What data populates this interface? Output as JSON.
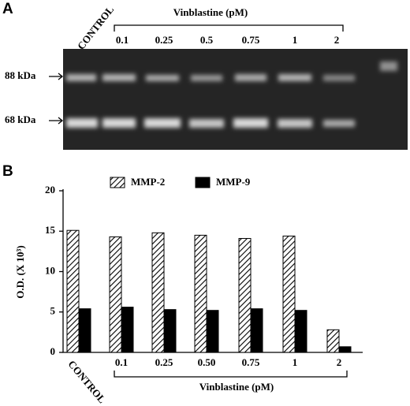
{
  "panel_a": {
    "label": "A",
    "treatment": "Vinblastine (pM)",
    "control": "CONTROL",
    "lanes": [
      "0.1",
      "0.25",
      "0.5",
      "0.75",
      "1",
      "2"
    ],
    "markers": [
      "88 kDa",
      "68 kDa"
    ]
  },
  "chart_data": {
    "type": "bar",
    "panel_label": "B",
    "categories": [
      "CONTROL",
      "0.1",
      "0.25",
      "0.50",
      "0.75",
      "1",
      "2"
    ],
    "series": [
      {
        "name": "MMP-2",
        "color": "#000000",
        "pattern": "hatch",
        "values": [
          15.1,
          14.3,
          14.8,
          14.5,
          14.1,
          14.4,
          2.8
        ]
      },
      {
        "name": "MMP-9",
        "color": "#000000",
        "pattern": "solid",
        "values": [
          5.4,
          5.6,
          5.3,
          5.2,
          5.4,
          5.2,
          0.7
        ]
      }
    ],
    "y_label": "O.D. (X 10³)",
    "x_label": "Vinblastine (pM)",
    "ylim": [
      0,
      20
    ],
    "yticks": [
      0,
      5,
      10,
      15,
      20
    ],
    "grid": false
  }
}
